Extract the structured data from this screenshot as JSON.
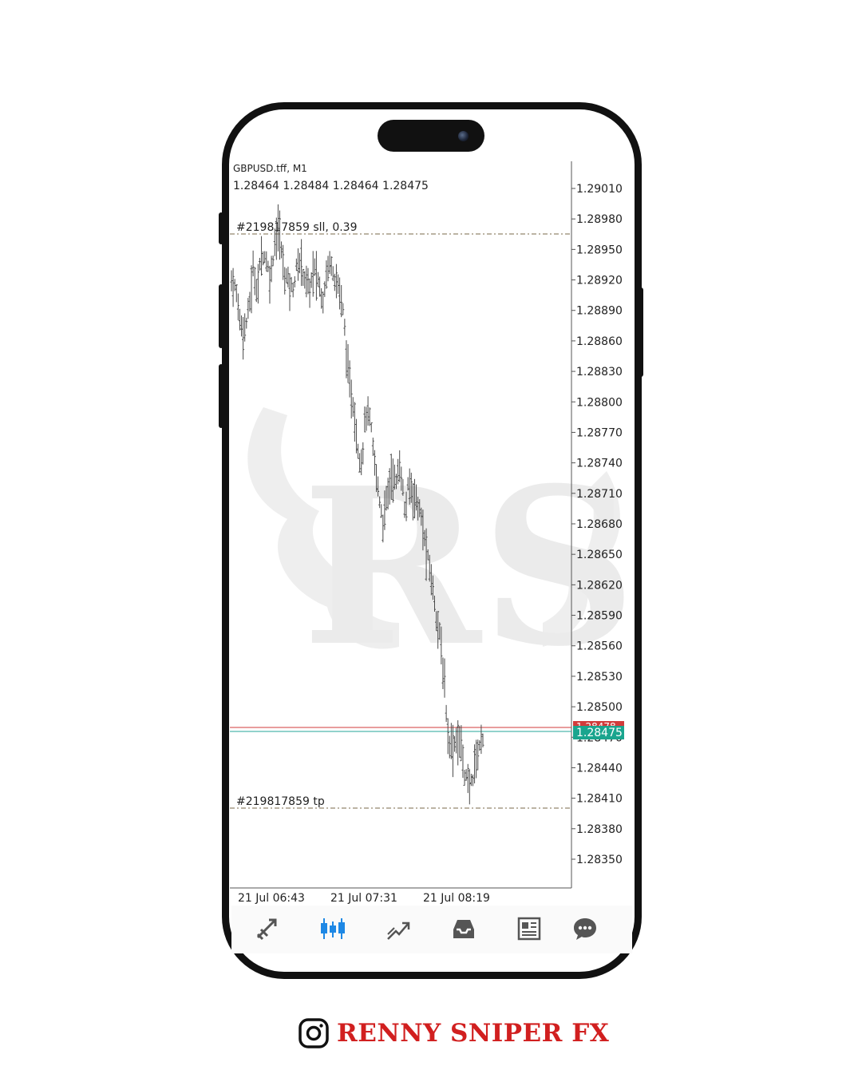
{
  "chart": {
    "symbol": "GBPUSD.tff, M1",
    "ohlc": "1.28464 1.28484 1.28464 1.28475",
    "sl_label": "#219817859 sll, 0.39",
    "tp_label": "#219817859 tp",
    "current_price": "1.28475",
    "ask_price_partial": "1.28478"
  },
  "chart_data": {
    "type": "bar",
    "title": "GBPUSD.tff, M1",
    "y_ticks": [
      "1.29010",
      "1.28980",
      "1.28950",
      "1.28920",
      "1.28890",
      "1.28860",
      "1.28830",
      "1.28800",
      "1.28770",
      "1.28740",
      "1.28710",
      "1.28680",
      "1.28650",
      "1.28620",
      "1.28590",
      "1.28560",
      "1.28530",
      "1.28500",
      "1.28470",
      "1.28440",
      "1.28410",
      "1.28380",
      "1.28350"
    ],
    "x_ticks": [
      "21 Jul 06:43",
      "21 Jul 07:31",
      "21 Jul 08:19"
    ],
    "ylim": [
      1.2832,
      1.2903
    ],
    "stop_loss": 1.28966,
    "take_profit": 1.28398,
    "bid": 1.28475,
    "ask": 1.28478,
    "price_path": [
      1.2892,
      1.2891,
      1.2888,
      1.2887,
      1.2889,
      1.2893,
      1.2891,
      1.2895,
      1.2894,
      1.2892,
      1.2896,
      1.2897,
      1.2893,
      1.2892,
      1.2891,
      1.2893,
      1.2894,
      1.2892,
      1.2891,
      1.2893,
      1.2892,
      1.289,
      1.2893,
      1.2894,
      1.2892,
      1.2891,
      1.2888,
      1.2882,
      1.288,
      1.2876,
      1.2874,
      1.2879,
      1.2878,
      1.2874,
      1.2871,
      1.2868,
      1.2871,
      1.2873,
      1.2872,
      1.2874,
      1.2869,
      1.2872,
      1.2871,
      1.287,
      1.2868,
      1.2865,
      1.2863,
      1.286,
      1.2857,
      1.2853,
      1.2847,
      1.2846,
      1.2847,
      1.2846,
      1.2843,
      1.2842,
      1.2844,
      1.2846,
      1.2847
    ]
  },
  "nav": {
    "items": [
      "quotes-icon",
      "chart-icon",
      "trade-icon",
      "history-icon",
      "news-icon",
      "messages-icon"
    ],
    "active": 1,
    "active_color": "#1e88e5"
  },
  "brand": {
    "name": "RENNY SNIPER FX",
    "watermark": "RS",
    "color": "#d11f1f"
  }
}
